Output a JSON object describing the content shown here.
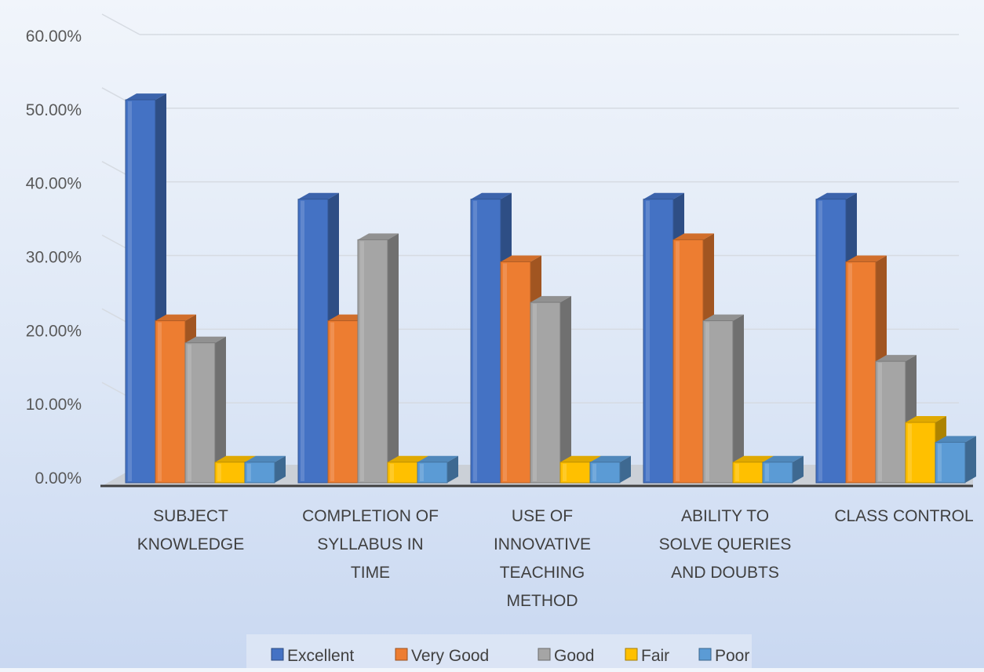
{
  "chart_data": {
    "type": "bar",
    "title": "",
    "xlabel": "",
    "ylabel": "",
    "ylim": [
      0,
      0.6
    ],
    "yticks": [
      0,
      0.1,
      0.2,
      0.3,
      0.4,
      0.5,
      0.6
    ],
    "ytick_labels": [
      "0.00%",
      "10.00%",
      "20.00%",
      "30.00%",
      "40.00%",
      "50.00%",
      "60.00%"
    ],
    "grid": true,
    "legend_position": "bottom",
    "style": "3d-clustered-column",
    "categories": [
      "SUBJECT KNOWLEDGE",
      "COMPLETION OF SYLLABUS IN TIME",
      "USE OF INNOVATIVE TEACHING METHOD",
      "ABILITY TO SOLVE QUERIES AND DOUBTS",
      "CLASS CONTROL"
    ],
    "category_label_lines": [
      [
        "SUBJECT",
        "KNOWLEDGE"
      ],
      [
        "COMPLETION OF",
        "SYLLABUS IN",
        "TIME"
      ],
      [
        "USE OF",
        "INNOVATIVE",
        "TEACHING",
        "METHOD"
      ],
      [
        "ABILITY TO",
        "SOLVE QUERIES",
        "AND DOUBTS"
      ],
      [
        "CLASS CONTROL"
      ]
    ],
    "series": [
      {
        "name": "Excellent",
        "color": "#4472c4",
        "values": [
          0.52,
          0.385,
          0.385,
          0.385,
          0.385
        ]
      },
      {
        "name": "Very Good",
        "color": "#ed7d31",
        "values": [
          0.22,
          0.22,
          0.3,
          0.33,
          0.3
        ]
      },
      {
        "name": "Good",
        "color": "#a5a5a5",
        "values": [
          0.19,
          0.33,
          0.245,
          0.22,
          0.165
        ]
      },
      {
        "name": "Fair",
        "color": "#ffc000",
        "values": [
          0.028,
          0.028,
          0.028,
          0.028,
          0.082
        ]
      },
      {
        "name": "Poor",
        "color": "#5b9bd5",
        "values": [
          0.028,
          0.028,
          0.028,
          0.028,
          0.055
        ]
      }
    ]
  }
}
